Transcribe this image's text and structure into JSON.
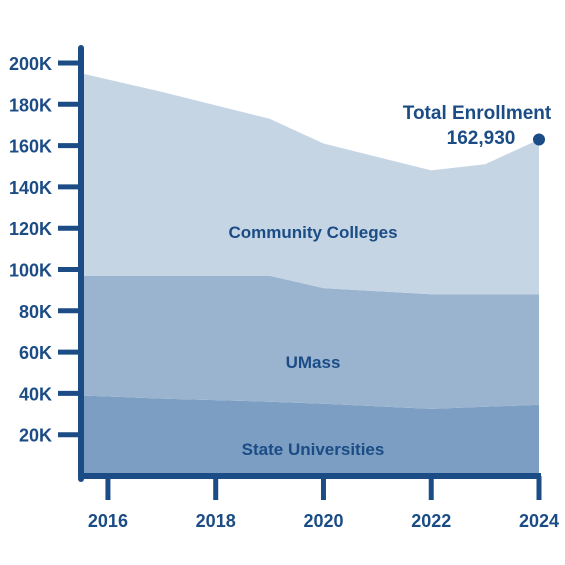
{
  "chart_data": {
    "type": "area",
    "stacked": true,
    "x": [
      2015.5,
      2017,
      2019,
      2020,
      2022,
      2023,
      2024
    ],
    "series": [
      {
        "name": "State Universities",
        "values": [
          39000,
          37500,
          36000,
          35000,
          32500,
          33500,
          34500
        ]
      },
      {
        "name": "UMass",
        "values": [
          58000,
          59500,
          61000,
          56000,
          55500,
          54500,
          53500
        ]
      },
      {
        "name": "Community Colleges",
        "values": [
          98000,
          89000,
          76000,
          70000,
          60000,
          63000,
          74930
        ]
      }
    ],
    "x_ticks": [
      "2016",
      "2018",
      "2020",
      "2022",
      "2024"
    ],
    "y_ticks": [
      "20K",
      "40K",
      "60K",
      "80K",
      "100K",
      "120K",
      "140K",
      "160K",
      "180K",
      "200K"
    ],
    "ylim": [
      0,
      200000
    ],
    "xlim": [
      2015.5,
      2024
    ],
    "annotation": {
      "title": "Total Enrollment",
      "value": "162,930",
      "x": 2024,
      "y": 162930
    },
    "grid": false,
    "legend": "none",
    "colors": {
      "State Universities": "#7b9ec2",
      "UMass": "#9ab4d0",
      "Community Colleges": "#c5d5e4",
      "text": "#1b4c85",
      "axis": "#1b4c85"
    }
  }
}
